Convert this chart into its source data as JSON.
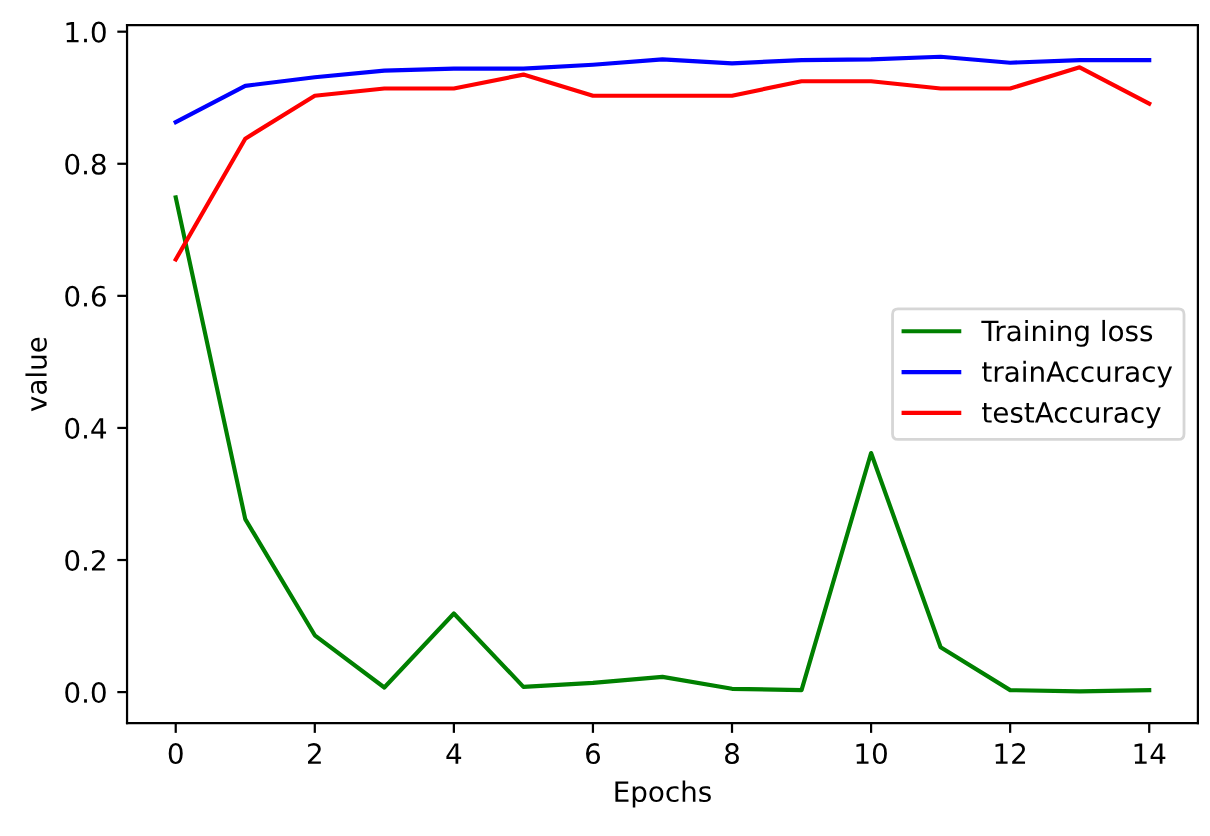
{
  "chart_data": {
    "type": "line",
    "xlabel": "Epochs",
    "ylabel": "value",
    "x": [
      0,
      1,
      2,
      3,
      4,
      5,
      6,
      7,
      8,
      9,
      10,
      11,
      12,
      13,
      14
    ],
    "series": [
      {
        "name": "Training loss",
        "color": "#008000",
        "values": [
          0.749,
          0.262,
          0.086,
          0.007,
          0.119,
          0.008,
          0.014,
          0.023,
          0.005,
          0.003,
          0.362,
          0.068,
          0.003,
          0.001,
          0.003
        ]
      },
      {
        "name": "trainAccuracy",
        "color": "#0000ff",
        "values": [
          0.863,
          0.918,
          0.931,
          0.941,
          0.944,
          0.944,
          0.95,
          0.958,
          0.952,
          0.957,
          0.958,
          0.962,
          0.953,
          0.957,
          0.957
        ]
      },
      {
        "name": "testAccuracy",
        "color": "#ff0000",
        "values": [
          0.655,
          0.838,
          0.903,
          0.914,
          0.914,
          0.935,
          0.903,
          0.903,
          0.903,
          0.925,
          0.925,
          0.914,
          0.914,
          0.946,
          0.891
        ]
      }
    ],
    "xlim": [
      -0.7,
      14.7
    ],
    "ylim": [
      -0.047,
      1.01
    ],
    "xticks": [
      0,
      2,
      4,
      6,
      8,
      10,
      12,
      14
    ],
    "yticks": [
      {
        "value": 0,
        "label": "0.0"
      },
      {
        "value": 0.2,
        "label": "0.2"
      },
      {
        "value": 0.4,
        "label": "0.4"
      },
      {
        "value": 0.6,
        "label": "0.6"
      },
      {
        "value": 0.8,
        "label": "0.8"
      },
      {
        "value": 1.0,
        "label": "1.0"
      }
    ],
    "legend": "center right",
    "grid": false
  }
}
